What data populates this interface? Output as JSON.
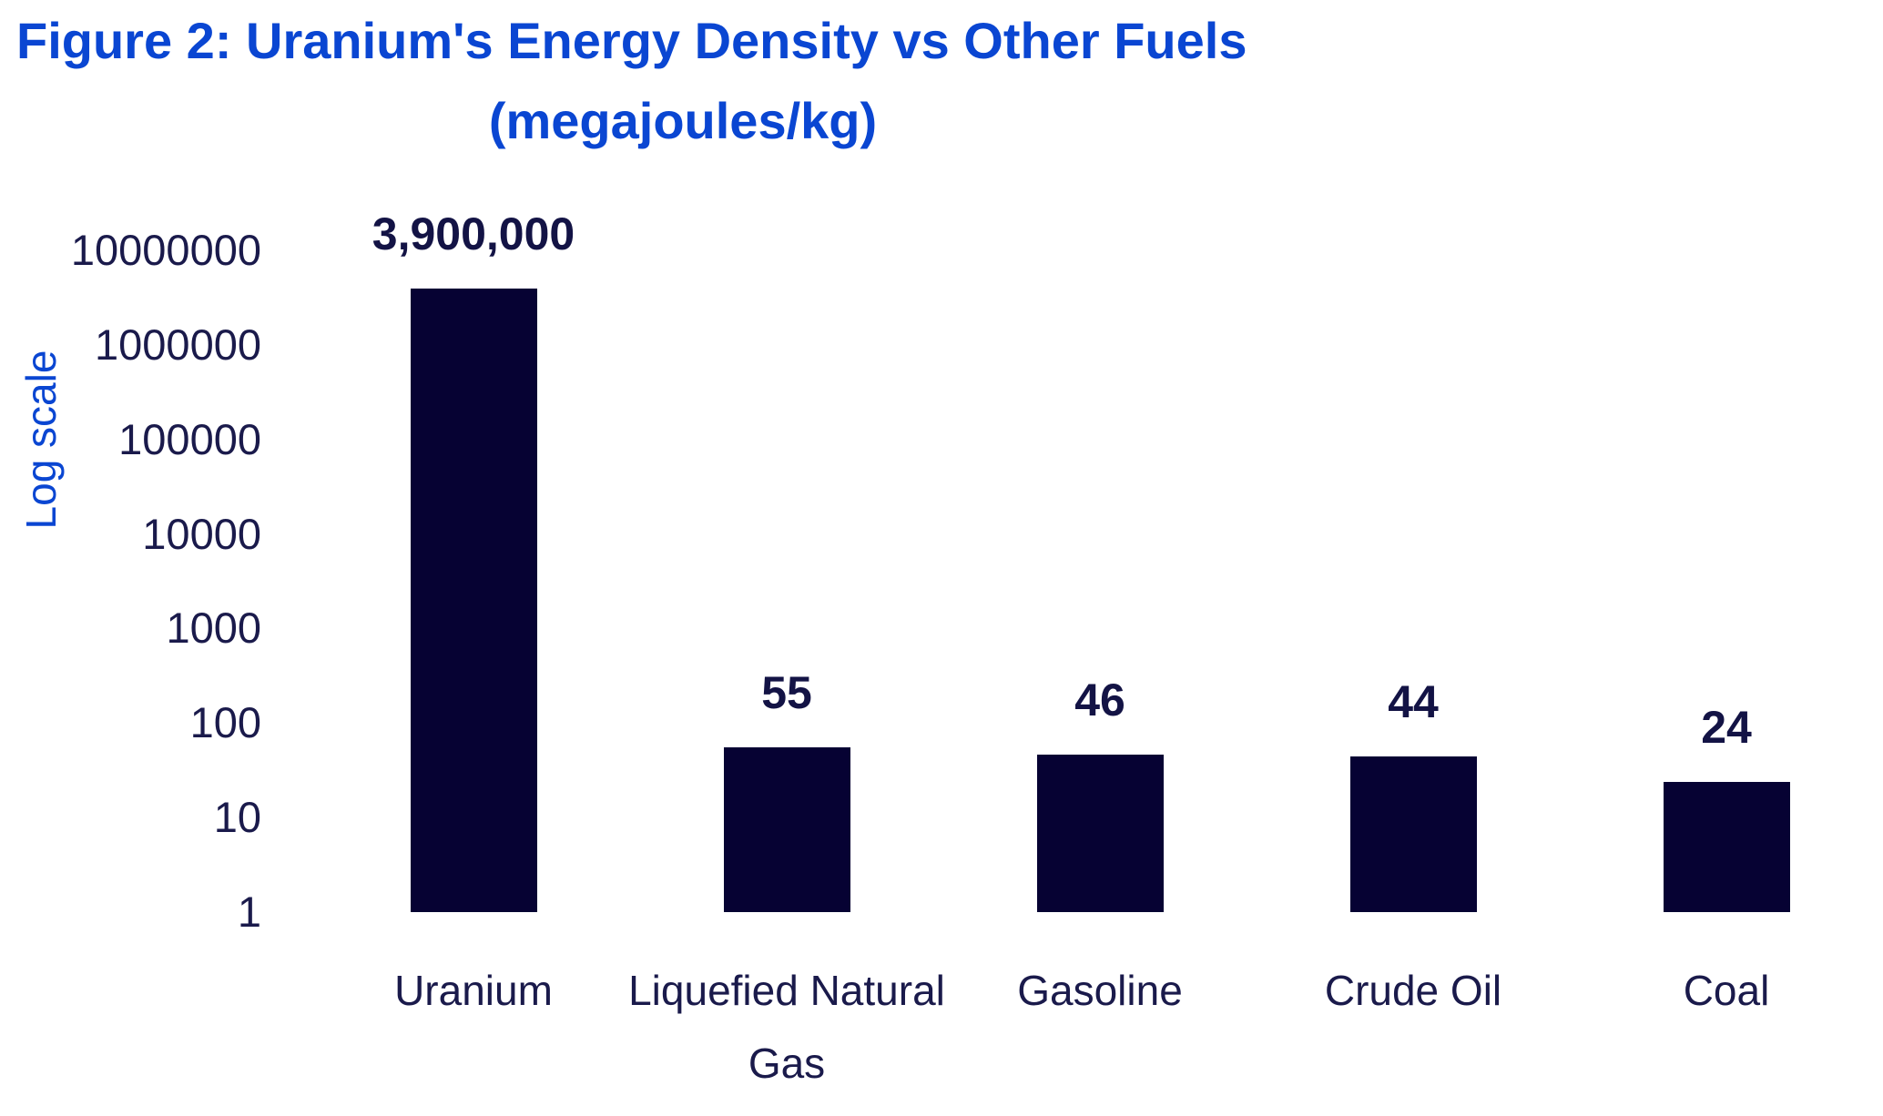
{
  "chart_data": {
    "type": "bar",
    "title_line1": "Figure 2: Uranium's Energy Density vs Other Fuels",
    "title_line2": "(megajoules/kg)",
    "ylabel": "Log scale",
    "xlabel": "",
    "yscale": "log",
    "ylim": [
      1,
      10000000
    ],
    "ytick_labels": [
      "10000000",
      "1000000",
      "100000",
      "10000",
      "1000",
      "100",
      "10",
      "1"
    ],
    "yticks": [
      10000000,
      1000000,
      100000,
      10000,
      1000,
      100,
      10,
      1
    ],
    "categories": [
      "Uranium",
      "Liquefied Natural Gas",
      "Gasoline",
      "Crude Oil",
      "Coal"
    ],
    "values": [
      3900000,
      55,
      46,
      44,
      24
    ],
    "value_labels": [
      "3,900,000",
      "55",
      "46",
      "44",
      "24"
    ],
    "grid": false,
    "legend": false,
    "colors": {
      "title_blue": "#0a46d2",
      "bar_navy": "#060233",
      "axis_text": "#1a1a4b",
      "value_text": "#131345",
      "background": "#ffffff"
    }
  }
}
